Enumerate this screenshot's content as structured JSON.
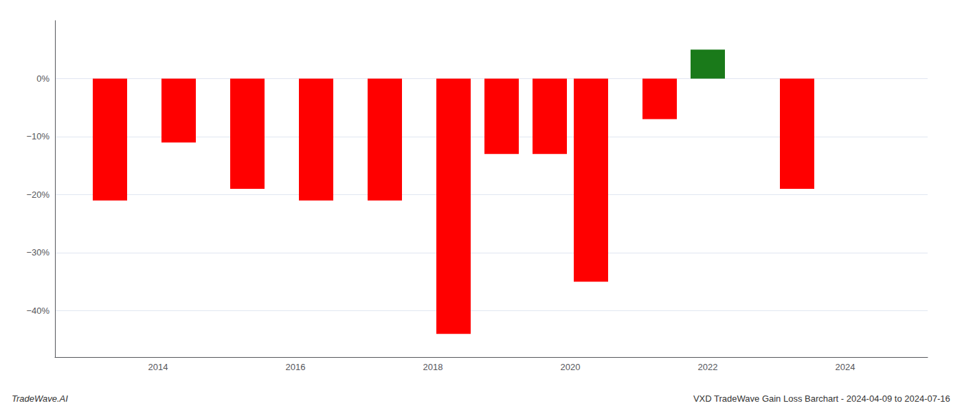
{
  "chart_data": {
    "type": "bar",
    "title": "VXD TradeWave Gain Loss Barchart - 2024-04-09 to 2024-07-16",
    "annotations": [
      "TradeWave.AI"
    ],
    "x": [
      2013.3,
      2014.3,
      2015.3,
      2016.3,
      2017.3,
      2018.3,
      2019.0,
      2019.7,
      2020.3,
      2021.3,
      2022.0,
      2023.3
    ],
    "values": [
      -0.21,
      -0.11,
      -0.19,
      -0.21,
      -0.21,
      -0.44,
      -0.13,
      -0.13,
      -0.35,
      -0.07,
      0.05,
      -0.19
    ],
    "colors": [
      "#ff0000",
      "#ff0000",
      "#ff0000",
      "#ff0000",
      "#ff0000",
      "#ff0000",
      "#ff0000",
      "#ff0000",
      "#ff0000",
      "#ff0000",
      "#1a7a1a",
      "#ff0000"
    ],
    "xlim": [
      2012.5,
      2025.2
    ],
    "xticks": [
      2014,
      2016,
      2018,
      2020,
      2022,
      2024
    ],
    "ylim": [
      -0.48,
      0.1
    ],
    "yticks": [
      {
        "value": 0.0,
        "label": "0%"
      },
      {
        "value": -0.1,
        "label": "−10%"
      },
      {
        "value": -0.2,
        "label": "−20%"
      },
      {
        "value": -0.3,
        "label": "−30%"
      },
      {
        "value": -0.4,
        "label": "−40%"
      }
    ],
    "grid": true
  }
}
